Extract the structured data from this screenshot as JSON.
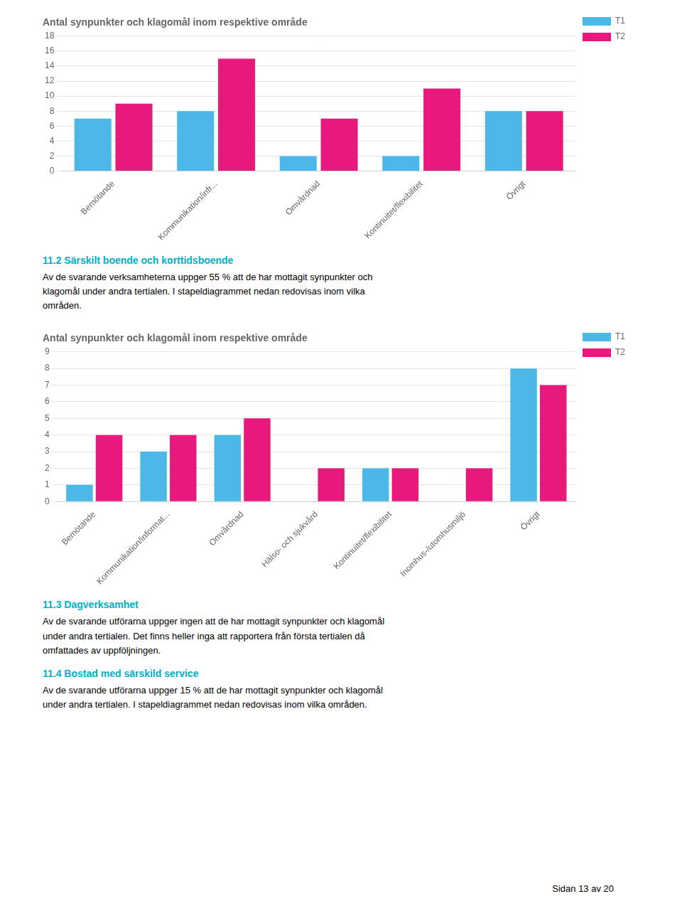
{
  "chart_data": [
    {
      "type": "bar",
      "title": "Antal synpunkter och klagomål inom respektive område",
      "categories": [
        "Bemötande",
        "Kommunikation/infr...",
        "Omvårdnad",
        "Kontinuitet/flexibilitet",
        "Övrigt"
      ],
      "series": [
        {
          "name": "T1",
          "color": "#4db8e8",
          "values": [
            7,
            8,
            2,
            2,
            8
          ]
        },
        {
          "name": "T2",
          "color": "#e8197c",
          "values": [
            9,
            15,
            7,
            11,
            8
          ]
        }
      ],
      "ylim": [
        0,
        18
      ],
      "yticks": [
        0,
        2,
        4,
        6,
        8,
        10,
        12,
        14,
        16,
        18
      ],
      "grid": true,
      "legend": "right",
      "annotations": [
        {
          "text": "11.2  Särskilt boende och korttidsboende",
          "color": "#00afc8"
        },
        {
          "text": "Av de svarande verksamheterna uppger 55 % att de har mottagit synpunkter och\nklagomål under andra tertialen. I stapeldiagrammet nedan redovisas inom vilka\nområden."
        }
      ]
    },
    {
      "type": "bar",
      "title": "Antal synpunkter och klagomål inom respektive område",
      "categories": [
        "Bemötande",
        "Kommunikation/informat...",
        "Omvårdnad",
        "Hälso- och sjukvård",
        "Kontinuitet/flexibilitet",
        "Inomhus-/utomhusmiljö",
        "Övrigt"
      ],
      "series": [
        {
          "name": "T1",
          "color": "#4db8e8",
          "values": [
            1,
            3,
            4,
            0,
            2,
            0,
            8
          ]
        },
        {
          "name": "T2",
          "color": "#e8197c",
          "values": [
            4,
            4,
            5,
            2,
            2,
            2,
            7
          ]
        }
      ],
      "ylim": [
        0,
        9
      ],
      "yticks": [
        0,
        1,
        2,
        3,
        4,
        5,
        6,
        7,
        8,
        9
      ],
      "grid": true,
      "legend": "right",
      "annotations": [
        {
          "text": "11.3  Dagverksamhet",
          "color": "#00afc8"
        },
        {
          "text": "Av de svarande utförarna uppger ingen att de har mottagit synpunkter och klagomål\nunder andra tertialen. Det finns heller inga att rapportera från första tertialen då\nomfattades av uppföljningen."
        },
        {
          "text": "11.4  Bostad med särskild service",
          "color": "#00afc8"
        },
        {
          "text": "Av de svarande utförarna uppger 15 % att de har mottagit synpunkter och klagomål\nunder andra tertialen. I stapeldiagrammet nedan redovisas inom vilka områden."
        },
        {
          "text": "Sidan 13 av 20"
        }
      ]
    }
  ]
}
